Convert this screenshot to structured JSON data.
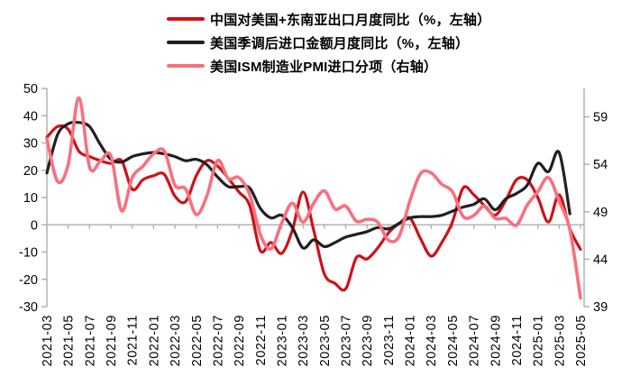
{
  "page": {
    "background": "#ffffff"
  },
  "chart_data": {
    "type": "line",
    "title": "",
    "grid": "zero-line-only",
    "legend_position": "top",
    "months": [
      "2021-03",
      "2021-04",
      "2021-05",
      "2021-06",
      "2021-07",
      "2021-08",
      "2021-09",
      "2021-10",
      "2021-11",
      "2021-12",
      "2022-01",
      "2022-02",
      "2022-03",
      "2022-04",
      "2022-05",
      "2022-06",
      "2022-07",
      "2022-08",
      "2022-09",
      "2022-10",
      "2022-11",
      "2022-12",
      "2023-01",
      "2023-02",
      "2023-03",
      "2023-04",
      "2023-05",
      "2023-06",
      "2023-07",
      "2023-08",
      "2023-09",
      "2023-10",
      "2023-11",
      "2023-12",
      "2024-01",
      "2024-02",
      "2024-03",
      "2024-04",
      "2024-05",
      "2024-06",
      "2024-07",
      "2024-08",
      "2024-09",
      "2024-10",
      "2024-11",
      "2024-12",
      "2025-01",
      "2025-02",
      "2025-03",
      "2025-04",
      "2025-05"
    ],
    "x_tick_labels": [
      "2021-03",
      "2021-05",
      "2021-07",
      "2021-09",
      "2021-11",
      "2022-01",
      "2022-03",
      "2022-05",
      "2022-07",
      "2022-09",
      "2022-11",
      "2023-01",
      "2023-03",
      "2023-05",
      "2023-07",
      "2023-09",
      "2023-11",
      "2024-01",
      "2024-03",
      "2024-05",
      "2024-07",
      "2024-09",
      "2024-11",
      "2025-01",
      "2025-03",
      "2025-05"
    ],
    "left_axis": {
      "min": -30,
      "max": 50,
      "ticks": [
        50,
        40,
        30,
        20,
        10,
        0,
        -10,
        -20,
        -30
      ]
    },
    "right_axis": {
      "min": 39,
      "max": 62,
      "ticks": [
        59,
        54,
        49,
        44,
        39
      ]
    },
    "axis_color": "#a6a6a6",
    "series": [
      {
        "key": "china-us-sea-exports",
        "name": "中国对美国+东南亚出口月度同比（%，左轴）",
        "axis": "left",
        "color": "#ce1118",
        "width": 3.2,
        "values": [
          32,
          36,
          35,
          27,
          25,
          23.5,
          22.5,
          23.5,
          13,
          16.5,
          18,
          18.5,
          10.5,
          8.5,
          18,
          23.5,
          21.5,
          17,
          12,
          7,
          -9.5,
          -6.5,
          -10.5,
          -2,
          12,
          -2,
          -18,
          -21.5,
          -23.5,
          -12,
          -12.5,
          -8.5,
          -3,
          0.5,
          2.5,
          -5,
          -11.5,
          -6.5,
          1,
          13.5,
          11,
          7,
          3.5,
          9,
          16.5,
          16.5,
          10,
          1,
          11,
          -1.5,
          -9
        ]
      },
      {
        "key": "us-imports-yoy",
        "name": "美国季调后进口金额月度同比（%，左轴）",
        "axis": "left",
        "color": "#231f20",
        "width": 3.2,
        "values": [
          19,
          33,
          37,
          37.5,
          36,
          29.5,
          24,
          23,
          25,
          26,
          26.5,
          26,
          25,
          23.5,
          24,
          22,
          17.5,
          14,
          14,
          13.5,
          6,
          2.5,
          3.5,
          -1,
          -8.5,
          -5.5,
          -8,
          -6.5,
          -4.5,
          -3.5,
          -2.5,
          -1,
          -1.5,
          0.5,
          2.5,
          3,
          3,
          3.5,
          5,
          6.5,
          7.5,
          9.5,
          5.5,
          9.5,
          11.5,
          14.5,
          22.5,
          19.5,
          26.5,
          4,
          null
        ]
      },
      {
        "key": "ism-pmi-imports",
        "name": "美国ISM制造业PMI进口分项（右轴）",
        "axis": "right",
        "color": "#f8707e",
        "width": 3.6,
        "values": [
          56.7,
          52.2,
          54,
          61,
          53.7,
          54.3,
          54.9,
          49.1,
          52.6,
          53.8,
          55.1,
          55.4,
          51.8,
          51.4,
          48.7,
          50.7,
          54.4,
          52.5,
          52.6,
          50.8,
          46.6,
          45.1,
          47.8,
          49.9,
          47.9,
          49.9,
          51.2,
          49.3,
          49.6,
          48,
          48.2,
          47.9,
          46,
          46.4,
          50.1,
          53,
          53.1,
          51.9,
          51.1,
          48.5,
          48.6,
          49.6,
          48.3,
          48.3,
          47.6,
          49.7,
          51.1,
          52.6,
          50.1,
          47.1,
          39.9
        ]
      }
    ]
  }
}
